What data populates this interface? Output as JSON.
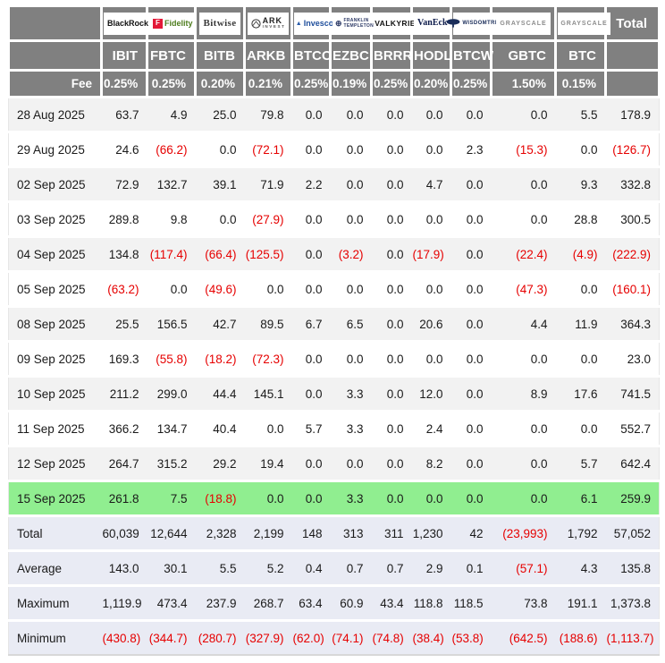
{
  "colors": {
    "header_bg": "#808080",
    "stripe_bg": "#f2f2f2",
    "highlight_bg": "#90ee90",
    "summary_bg": "#e9ebf4",
    "negative": "#e60000",
    "text": "#1a1a1a"
  },
  "chart_data": {
    "type": "table",
    "fee_label": "Fee",
    "total_column_label": "Total",
    "columns": [
      {
        "provider": "BlackRock",
        "ticker": "IBIT",
        "fee": "0.25%",
        "logo": {
          "type": "blackrock",
          "text": "BlackRock"
        }
      },
      {
        "provider": "Fidelity",
        "ticker": "FBTC",
        "fee": "0.25%",
        "logo": {
          "type": "fidelity",
          "icon_letter": "F",
          "text": "Fidelity"
        }
      },
      {
        "provider": "Bitwise",
        "ticker": "BITB",
        "fee": "0.20%",
        "logo": {
          "type": "bitwise",
          "text": "Bitwise"
        }
      },
      {
        "provider": "ARK Invest",
        "ticker": "ARKB",
        "fee": "0.21%",
        "logo": {
          "type": "ark",
          "line1": "ARK",
          "line2": "INVEST"
        }
      },
      {
        "provider": "Invesco",
        "ticker": "BTCO",
        "fee": "0.25%",
        "logo": {
          "type": "invesco",
          "text": "Invesco"
        }
      },
      {
        "provider": "Franklin Templeton",
        "ticker": "EZBC",
        "fee": "0.19%",
        "logo": {
          "type": "franklin",
          "line1": "FRANKLIN",
          "line2": "TEMPLETON"
        }
      },
      {
        "provider": "Valkyrie",
        "ticker": "BRRR",
        "fee": "0.25%",
        "logo": {
          "type": "valkyrie",
          "text": "VALKYRIE"
        }
      },
      {
        "provider": "VanEck",
        "ticker": "HODL",
        "fee": "0.20%",
        "logo": {
          "type": "vaneck",
          "text": "VanEck"
        }
      },
      {
        "provider": "WisdomTree",
        "ticker": "BTCW",
        "fee": "0.25%",
        "logo": {
          "type": "wisdomtree",
          "text": "WISDOMTREE"
        }
      },
      {
        "provider": "Grayscale",
        "ticker": "GBTC",
        "fee": "1.50%",
        "logo": {
          "type": "grayscale",
          "text": "GRAYSCALE"
        }
      },
      {
        "provider": "Grayscale",
        "ticker": "BTC",
        "fee": "0.15%",
        "logo": {
          "type": "grayscale",
          "text": "GRAYSCALE"
        }
      }
    ],
    "rows": [
      {
        "date": "28 Aug 2025",
        "values": [
          "63.7",
          "4.9",
          "25.0",
          "79.8",
          "0.0",
          "0.0",
          "0.0",
          "0.0",
          "0.0",
          "0.0",
          "5.5"
        ],
        "total": "178.9",
        "highlight": false
      },
      {
        "date": "29 Aug 2025",
        "values": [
          "24.6",
          "(66.2)",
          "0.0",
          "(72.1)",
          "0.0",
          "0.0",
          "0.0",
          "0.0",
          "2.3",
          "(15.3)",
          "0.0"
        ],
        "total": "(126.7)",
        "highlight": false
      },
      {
        "date": "02 Sep 2025",
        "values": [
          "72.9",
          "132.7",
          "39.1",
          "71.9",
          "2.2",
          "0.0",
          "0.0",
          "4.7",
          "0.0",
          "0.0",
          "9.3"
        ],
        "total": "332.8",
        "highlight": false
      },
      {
        "date": "03 Sep 2025",
        "values": [
          "289.8",
          "9.8",
          "0.0",
          "(27.9)",
          "0.0",
          "0.0",
          "0.0",
          "0.0",
          "0.0",
          "0.0",
          "28.8"
        ],
        "total": "300.5",
        "highlight": false
      },
      {
        "date": "04 Sep 2025",
        "values": [
          "134.8",
          "(117.4)",
          "(66.4)",
          "(125.5)",
          "0.0",
          "(3.2)",
          "0.0",
          "(17.9)",
          "0.0",
          "(22.4)",
          "(4.9)"
        ],
        "total": "(222.9)",
        "highlight": false
      },
      {
        "date": "05 Sep 2025",
        "values": [
          "(63.2)",
          "0.0",
          "(49.6)",
          "0.0",
          "0.0",
          "0.0",
          "0.0",
          "0.0",
          "0.0",
          "(47.3)",
          "0.0"
        ],
        "total": "(160.1)",
        "highlight": false
      },
      {
        "date": "08 Sep 2025",
        "values": [
          "25.5",
          "156.5",
          "42.7",
          "89.5",
          "6.7",
          "6.5",
          "0.0",
          "20.6",
          "0.0",
          "4.4",
          "11.9"
        ],
        "total": "364.3",
        "highlight": false
      },
      {
        "date": "09 Sep 2025",
        "values": [
          "169.3",
          "(55.8)",
          "(18.2)",
          "(72.3)",
          "0.0",
          "0.0",
          "0.0",
          "0.0",
          "0.0",
          "0.0",
          "0.0"
        ],
        "total": "23.0",
        "highlight": false
      },
      {
        "date": "10 Sep 2025",
        "values": [
          "211.2",
          "299.0",
          "44.4",
          "145.1",
          "0.0",
          "3.3",
          "0.0",
          "12.0",
          "0.0",
          "8.9",
          "17.6"
        ],
        "total": "741.5",
        "highlight": false
      },
      {
        "date": "11 Sep 2025",
        "values": [
          "366.2",
          "134.7",
          "40.4",
          "0.0",
          "5.7",
          "3.3",
          "0.0",
          "2.4",
          "0.0",
          "0.0",
          "0.0"
        ],
        "total": "552.7",
        "highlight": false
      },
      {
        "date": "12 Sep 2025",
        "values": [
          "264.7",
          "315.2",
          "29.2",
          "19.4",
          "0.0",
          "0.0",
          "0.0",
          "8.2",
          "0.0",
          "0.0",
          "5.7"
        ],
        "total": "642.4",
        "highlight": false
      },
      {
        "date": "15 Sep 2025",
        "values": [
          "261.8",
          "7.5",
          "(18.8)",
          "0.0",
          "0.0",
          "3.3",
          "0.0",
          "0.0",
          "0.0",
          "0.0",
          "6.1"
        ],
        "total": "259.9",
        "highlight": true
      }
    ],
    "summary": [
      {
        "label": "Total",
        "values": [
          "60,039",
          "12,644",
          "2,328",
          "2,199",
          "148",
          "313",
          "311",
          "1,230",
          "42",
          "(23,993)",
          "1,792"
        ],
        "total": "57,052"
      },
      {
        "label": "Average",
        "values": [
          "143.0",
          "30.1",
          "5.5",
          "5.2",
          "0.4",
          "0.7",
          "0.7",
          "2.9",
          "0.1",
          "(57.1)",
          "4.3"
        ],
        "total": "135.8"
      },
      {
        "label": "Maximum",
        "values": [
          "1,119.9",
          "473.4",
          "237.9",
          "268.7",
          "63.4",
          "60.9",
          "43.4",
          "118.8",
          "118.5",
          "73.8",
          "191.1"
        ],
        "total": "1,373.8"
      },
      {
        "label": "Minimum",
        "values": [
          "(430.8)",
          "(344.7)",
          "(280.7)",
          "(327.9)",
          "(62.0)",
          "(74.1)",
          "(74.8)",
          "(38.4)",
          "(53.8)",
          "(642.5)",
          "(188.6)"
        ],
        "total": "(1,113.7)"
      }
    ]
  }
}
